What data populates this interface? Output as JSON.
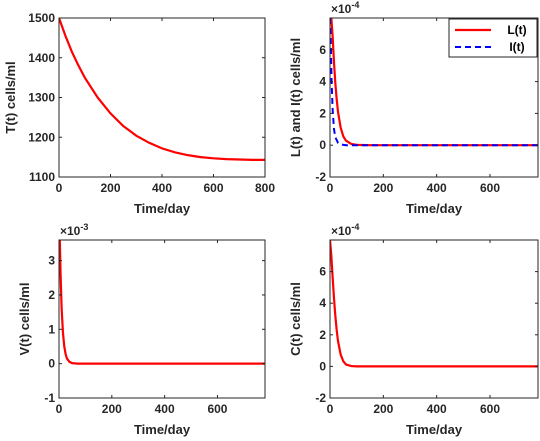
{
  "chart_data": [
    {
      "type": "line",
      "xlabel": "Time/day",
      "ylabel": "T(t) cells/ml",
      "xlim": [
        0,
        800
      ],
      "ylim": [
        1100,
        1500
      ],
      "xticks": [
        0,
        200,
        400,
        600,
        800
      ],
      "yticks": [
        1100,
        1200,
        1300,
        1400,
        1500
      ],
      "ytick_labels": [
        "1100",
        "1200",
        "1300",
        "1400",
        "1500"
      ],
      "exponent": "",
      "legend": null,
      "series": [
        {
          "color": "#ff0000",
          "dash": "solid",
          "x": [
            0,
            25,
            50,
            75,
            100,
            150,
            200,
            250,
            300,
            350,
            400,
            450,
            500,
            550,
            600,
            650,
            700,
            750,
            800
          ],
          "y": [
            1500,
            1455,
            1415,
            1381,
            1350,
            1300,
            1260,
            1228,
            1204,
            1186,
            1172,
            1162,
            1155,
            1150,
            1147,
            1145,
            1144,
            1143,
            1143
          ]
        }
      ]
    },
    {
      "type": "line",
      "xlabel": "Time/day",
      "ylabel": "L(t) and I(t) cells/ml",
      "xlim": [
        0,
        780
      ],
      "ylim": [
        -2,
        8
      ],
      "xticks": [
        0,
        200,
        400,
        600
      ],
      "yticks": [
        -2,
        0,
        2,
        4,
        6
      ],
      "ytick_labels": [
        "-2",
        "0",
        "2",
        "4",
        "6"
      ],
      "exponent": "×10",
      "exponent_power": "-4",
      "legend": "top-right",
      "series": [
        {
          "name": "L(t)",
          "color": "#ff0000",
          "dash": "solid",
          "x": [
            0,
            5,
            10,
            15,
            20,
            25,
            30,
            40,
            50,
            60,
            80,
            100,
            150,
            200,
            300,
            400,
            500,
            600,
            700,
            780
          ],
          "y": [
            8.0,
            8.0,
            6.8,
            5.2,
            3.9,
            2.9,
            2.1,
            1.1,
            0.55,
            0.28,
            0.08,
            0.02,
            0,
            0,
            0,
            0,
            0,
            0,
            0,
            0
          ]
        },
        {
          "name": "I(t)",
          "color": "#0000ff",
          "dash": "dashed",
          "x": [
            0,
            3,
            6,
            10,
            15,
            20,
            30,
            40,
            60,
            100,
            200,
            400,
            600,
            780
          ],
          "y": [
            8.0,
            6.5,
            4.0,
            2.2,
            1.0,
            0.5,
            0.15,
            0.05,
            0,
            0,
            0,
            0,
            0,
            0
          ]
        }
      ]
    },
    {
      "type": "line",
      "xlabel": "Time/day",
      "ylabel": "V(t) cells/ml",
      "xlim": [
        0,
        780
      ],
      "ylim": [
        -1,
        3.6
      ],
      "xticks": [
        0,
        200,
        400,
        600
      ],
      "yticks": [
        -1,
        0,
        1,
        2,
        3
      ],
      "ytick_labels": [
        "-1",
        "0",
        "1",
        "2",
        "3"
      ],
      "exponent": "×10",
      "exponent_power": "-3",
      "legend": null,
      "series": [
        {
          "color": "#ff0000",
          "dash": "solid",
          "x": [
            0,
            3,
            6,
            10,
            15,
            20,
            25,
            30,
            40,
            50,
            70,
            100,
            200,
            400,
            600,
            780
          ],
          "y": [
            3.6,
            3.6,
            2.6,
            1.6,
            0.9,
            0.5,
            0.28,
            0.15,
            0.05,
            0.015,
            0,
            0,
            0,
            0,
            0,
            0
          ]
        }
      ]
    },
    {
      "type": "line",
      "xlabel": "Time/day",
      "ylabel": "C(t) cells/ml",
      "xlim": [
        0,
        780
      ],
      "ylim": [
        -2,
        8
      ],
      "xticks": [
        0,
        200,
        400,
        600
      ],
      "yticks": [
        -2,
        0,
        2,
        4,
        6
      ],
      "ytick_labels": [
        "-2",
        "0",
        "2",
        "4",
        "6"
      ],
      "exponent": "×10",
      "exponent_power": "-4",
      "legend": null,
      "series": [
        {
          "color": "#ff0000",
          "dash": "solid",
          "x": [
            0,
            5,
            10,
            15,
            20,
            25,
            30,
            40,
            50,
            60,
            80,
            100,
            150,
            200,
            400,
            600,
            780
          ],
          "y": [
            8.0,
            7.0,
            5.6,
            4.3,
            3.2,
            2.3,
            1.6,
            0.75,
            0.32,
            0.12,
            0.02,
            0,
            0,
            0,
            0,
            0,
            0
          ]
        }
      ]
    }
  ]
}
